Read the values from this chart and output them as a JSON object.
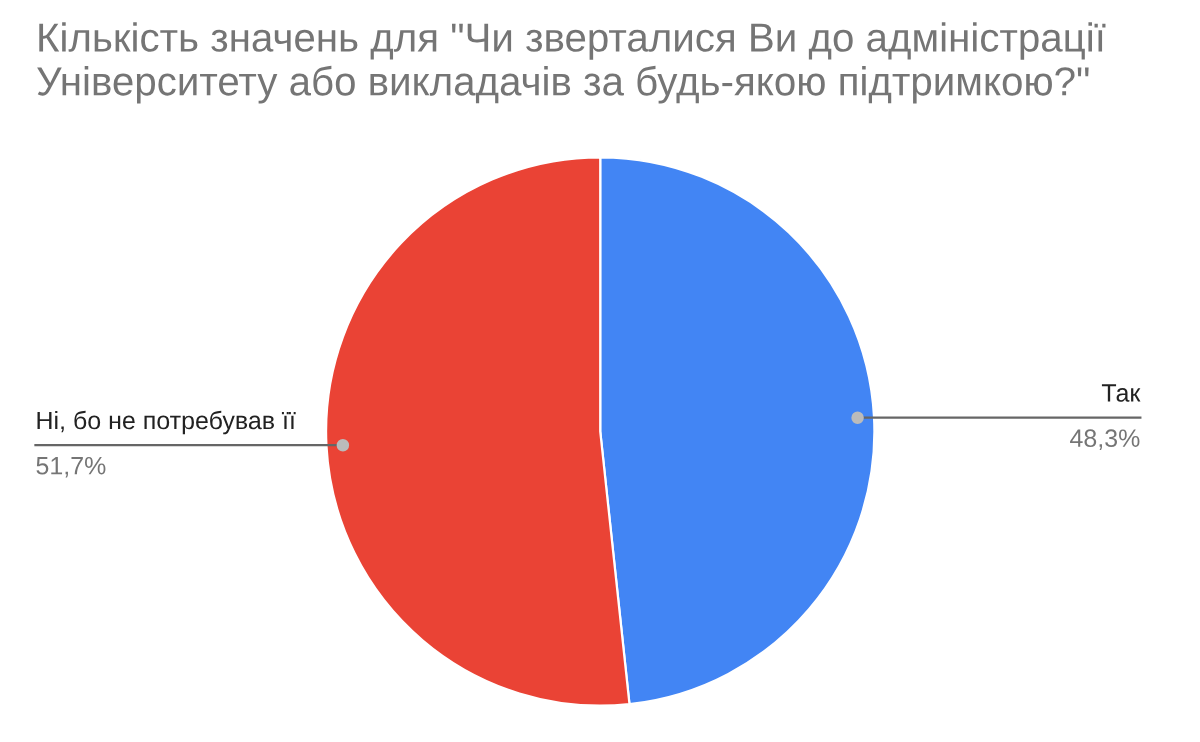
{
  "chart_data": {
    "type": "pie",
    "title": "Кількість значень для \"Чи зверталися Ви до адміністрації\nУніверситету або викладачів за будь-якою підтримкою?\"",
    "categories": [
      "Так",
      "Ні, бо не потребував її"
    ],
    "values": [
      48.3,
      51.7
    ],
    "colors": [
      "#4285f4",
      "#ea4335"
    ],
    "value_labels": [
      "48,3%",
      "51,7%"
    ],
    "legend": false
  }
}
